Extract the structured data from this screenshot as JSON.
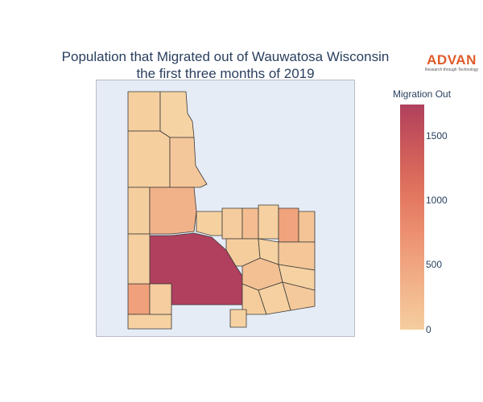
{
  "chart_data": {
    "type": "choropleth",
    "title_line1": "Population that Migrated out of Wauwatosa Wisconsin",
    "title_line2": "the first three months of 2019",
    "colorbar": {
      "title": "Migration Out",
      "range": [
        0,
        1720
      ],
      "ticks": [
        "0",
        "500",
        "1000",
        "1500"
      ],
      "colors": [
        "#f5ce9e",
        "#f2b289",
        "#ed9473",
        "#e2765f",
        "#cd5a5a",
        "#b0405d"
      ]
    },
    "regions_values_approx": [
      220,
      1720,
      650,
      520,
      600,
      130,
      180,
      90,
      300,
      400
    ]
  },
  "logo": {
    "word": "ADVAN",
    "tagline": "Research through Technology"
  }
}
